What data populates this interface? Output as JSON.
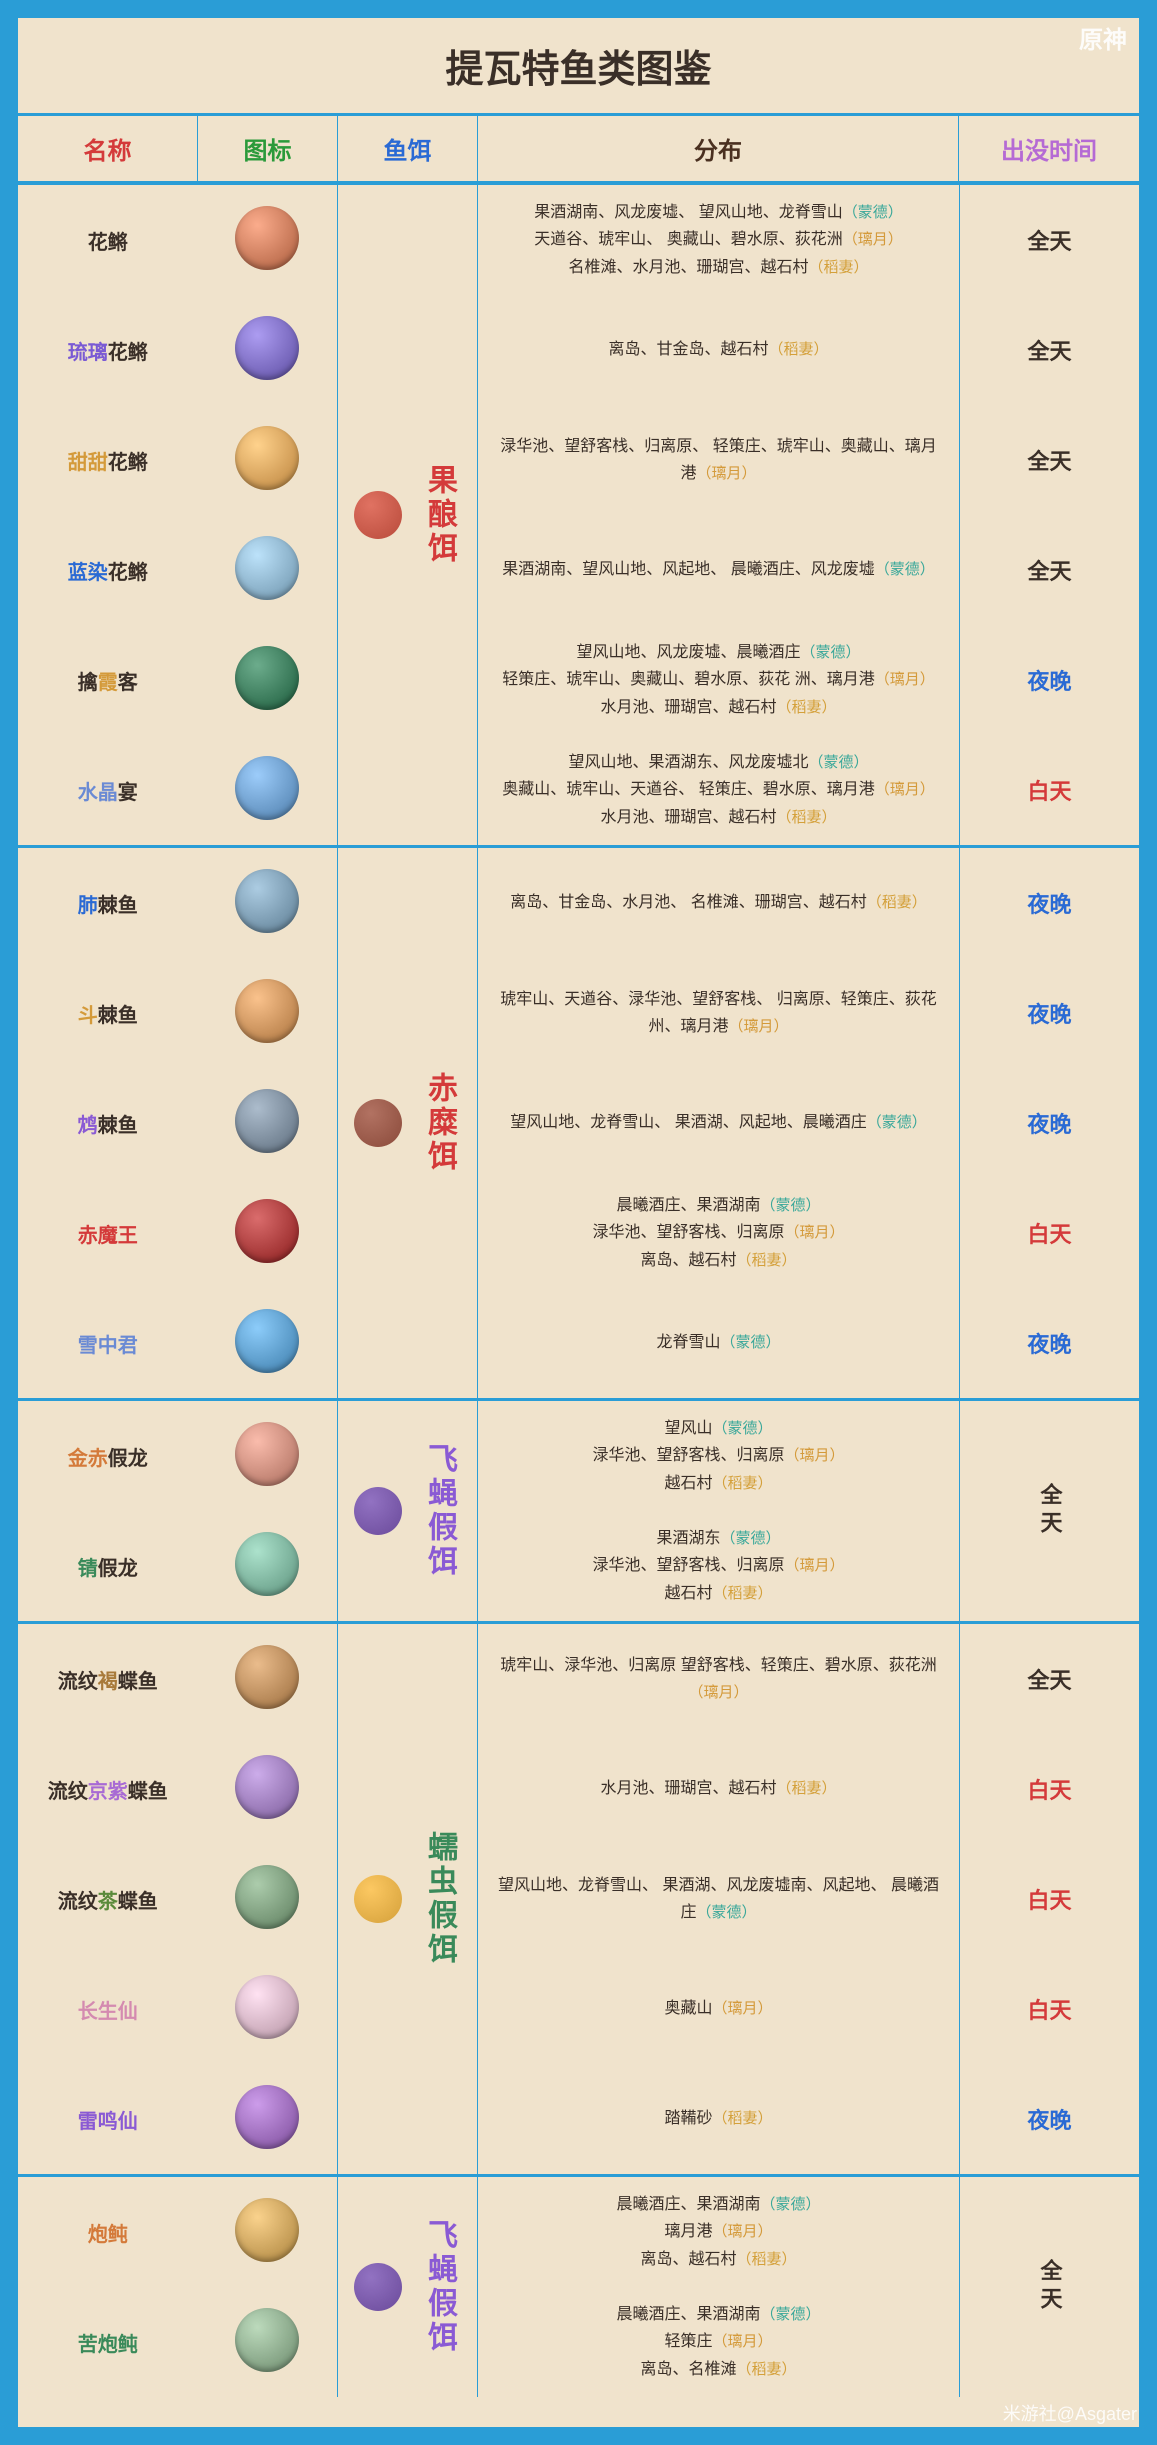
{
  "title": "提瓦特鱼类图鉴",
  "logo": "原神",
  "watermark": "米游社@Asgater",
  "headers": {
    "name": {
      "text": "名称",
      "color": "#d43a3a"
    },
    "icon": {
      "text": "图标",
      "color": "#2a9a3a"
    },
    "bait": {
      "text": "鱼饵",
      "color": "#2a6ad4"
    },
    "dist": {
      "text": "分布",
      "color": "#4a3020"
    },
    "time": {
      "text": "出没时间",
      "color": "#b56ad4"
    }
  },
  "regions": {
    "mondstadt": {
      "label": "（蒙德）",
      "color": "#3aa89a"
    },
    "liyue": {
      "label": "（璃月）",
      "color": "#d49a3a"
    },
    "inazuma": {
      "label": "（稻妻）",
      "color": "#d4a03a"
    }
  },
  "timeColors": {
    "allday": {
      "text": "全天",
      "color": "#3a2f28"
    },
    "night": {
      "text": "夜晚",
      "color": "#2a6ad4"
    },
    "day": {
      "text": "白天",
      "color": "#d43a3a"
    }
  },
  "groups": [
    {
      "bait": {
        "name": "果酿饵",
        "color": "#d43a3a",
        "iconColor": "#b84a3a"
      },
      "timeLayout": "perRow",
      "fish": [
        {
          "name": [
            {
              "t": "花鳉",
              "c": "#3a2f28"
            }
          ],
          "iconColor": "#c97a5a",
          "dist": [
            {
              "t": "果酒湖南、风龙废墟、\n望风山地、龙脊雪山",
              "r": "mondstadt"
            },
            {
              "t": "天遒谷、琥牢山、\n奥藏山、碧水原、荻花洲",
              "r": "liyue"
            },
            {
              "t": "名椎滩、水月池、珊瑚宫、越石村",
              "r": "inazuma"
            }
          ],
          "time": "allday"
        },
        {
          "name": [
            {
              "t": "琉璃",
              "c": "#7a5ad4"
            },
            {
              "t": "花鳉",
              "c": "#3a2f28"
            }
          ],
          "iconColor": "#7a6abf",
          "dist": [
            {
              "t": "离岛、甘金岛、越石村",
              "r": "inazuma"
            }
          ],
          "time": "allday"
        },
        {
          "name": [
            {
              "t": "甜甜",
              "c": "#d49a3a"
            },
            {
              "t": "花鳉",
              "c": "#3a2f28"
            }
          ],
          "iconColor": "#d4a05a",
          "dist": [
            {
              "t": "渌华池、望舒客栈、归离原、\n轻策庄、琥牢山、奥藏山、璃月港",
              "r": "liyue"
            }
          ],
          "time": "allday"
        },
        {
          "name": [
            {
              "t": "蓝染",
              "c": "#2a6ad4"
            },
            {
              "t": "花鳉",
              "c": "#3a2f28"
            }
          ],
          "iconColor": "#8ab0c8",
          "dist": [
            {
              "t": "果酒湖南、望风山地、风起地、\n晨曦酒庄、风龙废墟",
              "r": "mondstadt"
            }
          ],
          "time": "allday"
        },
        {
          "name": [
            {
              "t": "擒",
              "c": "#3a2f28"
            },
            {
              "t": "霞",
              "c": "#d49a3a"
            },
            {
              "t": "客",
              "c": "#3a2f28"
            }
          ],
          "iconColor": "#3a7a5a",
          "dist": [
            {
              "t": "望风山地、风龙废墟、晨曦酒庄",
              "r": "mondstadt"
            },
            {
              "t": "轻策庄、琥牢山、奥藏山、碧水原、荻花\n洲、璃月港",
              "r": "liyue"
            },
            {
              "t": "水月池、珊瑚宫、越石村",
              "r": "inazuma"
            }
          ],
          "time": "night"
        },
        {
          "name": [
            {
              "t": "水晶",
              "c": "#6a8ad4"
            },
            {
              "t": "宴",
              "c": "#3a2f28"
            }
          ],
          "iconColor": "#6a9ac8",
          "dist": [
            {
              "t": "望风山地、果酒湖东、风龙废墟北",
              "r": "mondstadt"
            },
            {
              "t": "奥藏山、琥牢山、天遒谷、\n轻策庄、碧水原、璃月港",
              "r": "liyue"
            },
            {
              "t": "水月池、珊瑚宫、越石村",
              "r": "inazuma"
            }
          ],
          "time": "day"
        }
      ]
    },
    {
      "bait": {
        "name": "赤糜饵",
        "color": "#d43a3a",
        "iconColor": "#8a4a3a"
      },
      "timeLayout": "perRow",
      "fish": [
        {
          "name": [
            {
              "t": "肺",
              "c": "#2a6ad4"
            },
            {
              "t": "棘鱼",
              "c": "#3a2f28"
            }
          ],
          "iconColor": "#7a9ab0",
          "dist": [
            {
              "t": "离岛、甘金岛、水月池、\n名椎滩、珊瑚宫、越石村",
              "r": "inazuma"
            }
          ],
          "time": "night"
        },
        {
          "name": [
            {
              "t": "斗",
              "c": "#d49a3a"
            },
            {
              "t": "棘鱼",
              "c": "#3a2f28"
            }
          ],
          "iconColor": "#c8905a",
          "dist": [
            {
              "t": "琥牢山、天遒谷、渌华池、望舒客栈、\n归离原、轻策庄、荻花州、璃月港",
              "r": "liyue"
            }
          ],
          "time": "night"
        },
        {
          "name": [
            {
              "t": "鸩",
              "c": "#8a5ad4"
            },
            {
              "t": "棘鱼",
              "c": "#3a2f28"
            }
          ],
          "iconColor": "#7a8a9a",
          "dist": [
            {
              "t": "望风山地、龙脊雪山、\n果酒湖、风起地、晨曦酒庄",
              "r": "mondstadt"
            }
          ],
          "time": "night"
        },
        {
          "name": [
            {
              "t": "赤魔王",
              "c": "#d43a3a"
            }
          ],
          "iconColor": "#a83a3a",
          "dist": [
            {
              "t": "晨曦酒庄、果酒湖南",
              "r": "mondstadt"
            },
            {
              "t": "渌华池、望舒客栈、归离原",
              "r": "liyue"
            },
            {
              "t": "离岛、越石村",
              "r": "inazuma"
            }
          ],
          "time": "day"
        },
        {
          "name": [
            {
              "t": "雪中君",
              "c": "#6a8ad4"
            }
          ],
          "iconColor": "#5a9ac8",
          "dist": [
            {
              "t": "龙脊雪山",
              "r": "mondstadt"
            }
          ],
          "time": "night"
        }
      ]
    },
    {
      "bait": {
        "name": "飞蝇假饵",
        "color": "#8a5ad4",
        "iconColor": "#6a4a9a"
      },
      "timeLayout": "merged",
      "mergedTime": "allday",
      "fish": [
        {
          "name": [
            {
              "t": "金赤",
              "c": "#d47a3a"
            },
            {
              "t": "假龙",
              "c": "#3a2f28"
            }
          ],
          "iconColor": "#c88a7a",
          "dist": [
            {
              "t": "望风山",
              "r": "mondstadt"
            },
            {
              "t": "渌华池、望舒客栈、归离原",
              "r": "liyue"
            },
            {
              "t": "越石村",
              "r": "inazuma"
            }
          ]
        },
        {
          "name": [
            {
              "t": "锖",
              "c": "#3a8a5a"
            },
            {
              "t": "假龙",
              "c": "#3a2f28"
            }
          ],
          "iconColor": "#7ab09a",
          "dist": [
            {
              "t": "果酒湖东",
              "r": "mondstadt"
            },
            {
              "t": "渌华池、望舒客栈、归离原",
              "r": "liyue"
            },
            {
              "t": "越石村",
              "r": "inazuma"
            }
          ]
        }
      ]
    },
    {
      "bait": {
        "name": "蠕虫假饵",
        "color": "#3a8a5a",
        "iconColor": "#d4a03a"
      },
      "timeLayout": "perRow",
      "fish": [
        {
          "name": [
            {
              "t": "流纹",
              "c": "#3a2f28"
            },
            {
              "t": "褐",
              "c": "#a87a3a"
            },
            {
              "t": "蝶鱼",
              "c": "#3a2f28"
            }
          ],
          "iconColor": "#b88a5a",
          "dist": [
            {
              "t": "琥牢山、渌华池、归离原\n望舒客栈、轻策庄、碧水原、荻花洲",
              "r": "liyue"
            }
          ],
          "time": "allday"
        },
        {
          "name": [
            {
              "t": "流纹",
              "c": "#3a2f28"
            },
            {
              "t": "京紫",
              "c": "#a86ad4"
            },
            {
              "t": "蝶鱼",
              "c": "#3a2f28"
            }
          ],
          "iconColor": "#9a7ab8",
          "dist": [
            {
              "t": "水月池、珊瑚宫、越石村",
              "r": "inazuma"
            }
          ],
          "time": "day"
        },
        {
          "name": [
            {
              "t": "流纹",
              "c": "#3a2f28"
            },
            {
              "t": "茶",
              "c": "#5a8a3a"
            },
            {
              "t": "蝶鱼",
              "c": "#3a2f28"
            }
          ],
          "iconColor": "#7a9a7a",
          "dist": [
            {
              "t": "望风山地、龙脊雪山、\n果酒湖、风龙废墟南、风起地、\n晨曦酒庄",
              "r": "mondstadt"
            }
          ],
          "time": "day"
        },
        {
          "name": [
            {
              "t": "长生仙",
              "c": "#d48ab0"
            }
          ],
          "iconColor": "#d0b0c0",
          "dist": [
            {
              "t": "奥藏山",
              "r": "liyue"
            }
          ],
          "time": "day"
        },
        {
          "name": [
            {
              "t": "雷鸣仙",
              "c": "#8a5ad4"
            }
          ],
          "iconColor": "#9a6ab8",
          "dist": [
            {
              "t": "踏鞴砂",
              "r": "inazuma"
            }
          ],
          "time": "night"
        }
      ]
    },
    {
      "bait": {
        "name": "飞蝇假饵",
        "color": "#8a5ad4",
        "iconColor": "#6a4a9a"
      },
      "timeLayout": "merged",
      "mergedTime": "allday",
      "fish": [
        {
          "name": [
            {
              "t": "炮鲀",
              "c": "#d47a3a"
            }
          ],
          "iconColor": "#c8a05a",
          "dist": [
            {
              "t": "晨曦酒庄、果酒湖南",
              "r": "mondstadt"
            },
            {
              "t": "璃月港",
              "r": "liyue"
            },
            {
              "t": "离岛、越石村",
              "r": "inazuma"
            }
          ]
        },
        {
          "name": [
            {
              "t": "苦炮鲀",
              "c": "#3a8a5a"
            }
          ],
          "iconColor": "#8aa88a",
          "dist": [
            {
              "t": "晨曦酒庄、果酒湖南",
              "r": "mondstadt"
            },
            {
              "t": "轻策庄",
              "r": "liyue"
            },
            {
              "t": "离岛、名椎滩",
              "r": "inazuma"
            }
          ]
        }
      ]
    }
  ]
}
